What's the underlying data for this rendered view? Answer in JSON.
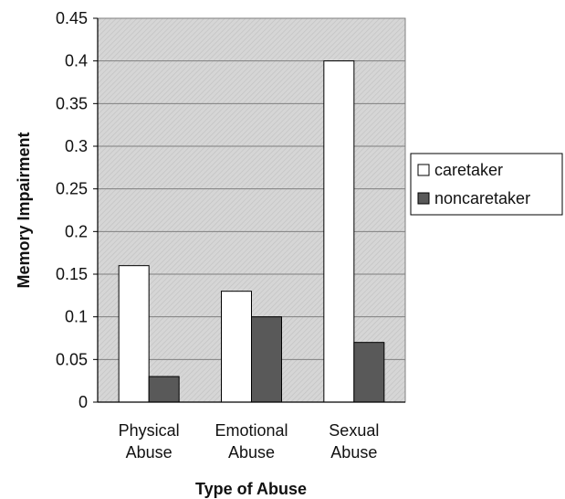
{
  "chart_data": {
    "type": "bar",
    "categories": [
      [
        "Physical",
        "Abuse"
      ],
      [
        "Emotional",
        "Abuse"
      ],
      [
        "Sexual",
        "Abuse"
      ]
    ],
    "series": [
      {
        "name": "caretaker",
        "values": [
          0.16,
          0.13,
          0.4
        ],
        "color": "#ffffff"
      },
      {
        "name": "noncaretaker",
        "values": [
          0.03,
          0.1,
          0.07
        ],
        "color": "#595959"
      }
    ],
    "xlabel": "Type of Abuse",
    "ylabel": "Memory Impairment",
    "ylim": [
      0,
      0.45
    ],
    "yticks": [
      "0",
      "0.05",
      "0.1",
      "0.15",
      "0.2",
      "0.25",
      "0.3",
      "0.35",
      "0.4",
      "0.45"
    ],
    "grid": true,
    "plot_background": "#d4d4d4",
    "legend_position": "right"
  }
}
